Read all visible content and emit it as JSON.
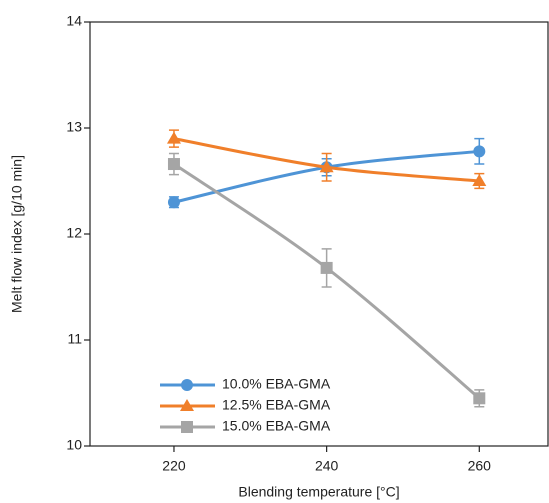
{
  "chart_data": {
    "type": "line",
    "x_label": "Blending temperature [°C]",
    "y_label": "Melt flow index [g/10 min]",
    "x": [
      220,
      240,
      260
    ],
    "xlim": [
      209,
      269
    ],
    "xticks": [
      220,
      240,
      260
    ],
    "ylim": [
      10,
      14
    ],
    "yticks": [
      10,
      11,
      12,
      13,
      14
    ],
    "legend": "lower left",
    "series": [
      {
        "name": "10.0% EBA-GMA",
        "color": "#4e94d6",
        "marker": "circle",
        "values": [
          12.3,
          12.63,
          12.78
        ],
        "errors": [
          0.05,
          0.08,
          0.12
        ]
      },
      {
        "name": "12.5% EBA-GMA",
        "color": "#f07f2a",
        "marker": "triangle",
        "values": [
          12.9,
          12.63,
          12.5
        ],
        "errors": [
          0.08,
          0.13,
          0.07
        ]
      },
      {
        "name": "15.0% EBA-GMA",
        "color": "#a5a5a5",
        "marker": "square",
        "values": [
          12.66,
          11.68,
          10.45
        ],
        "errors": [
          0.1,
          0.18,
          0.08
        ]
      }
    ]
  }
}
